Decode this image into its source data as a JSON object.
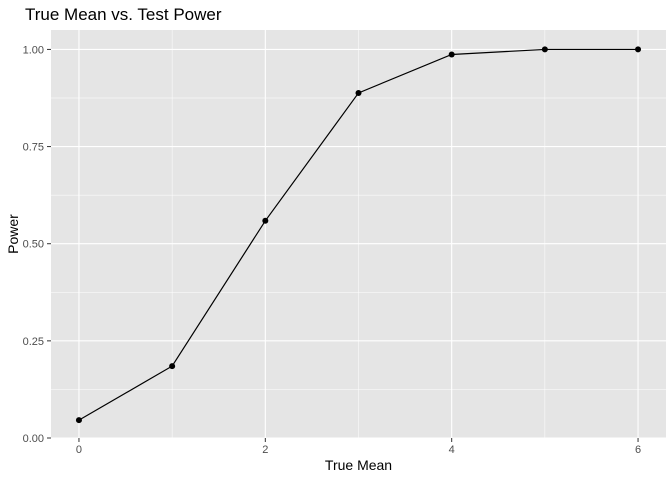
{
  "chart_data": {
    "type": "line",
    "title": "True Mean vs. Test Power",
    "xlabel": "True Mean",
    "ylabel": "Power",
    "xlim": [
      -0.3,
      6.3
    ],
    "ylim": [
      0,
      1.05
    ],
    "x_ticks": [
      0,
      2,
      4,
      6
    ],
    "x_tick_labels": [
      "0",
      "2",
      "4",
      "6"
    ],
    "y_ticks": [
      0,
      0.25,
      0.5,
      0.75,
      1.0
    ],
    "y_tick_labels": [
      "0.00",
      "0.25",
      "0.50",
      "0.75",
      "1.00"
    ],
    "grid": true,
    "x": [
      0,
      1,
      2,
      3,
      4,
      5,
      6
    ],
    "y": [
      0.046,
      0.185,
      0.559,
      0.888,
      0.987,
      1.0,
      1.0
    ],
    "colors": {
      "panel_background": "#e5e5e5",
      "grid": "#ffffff",
      "series": "#000000"
    }
  }
}
